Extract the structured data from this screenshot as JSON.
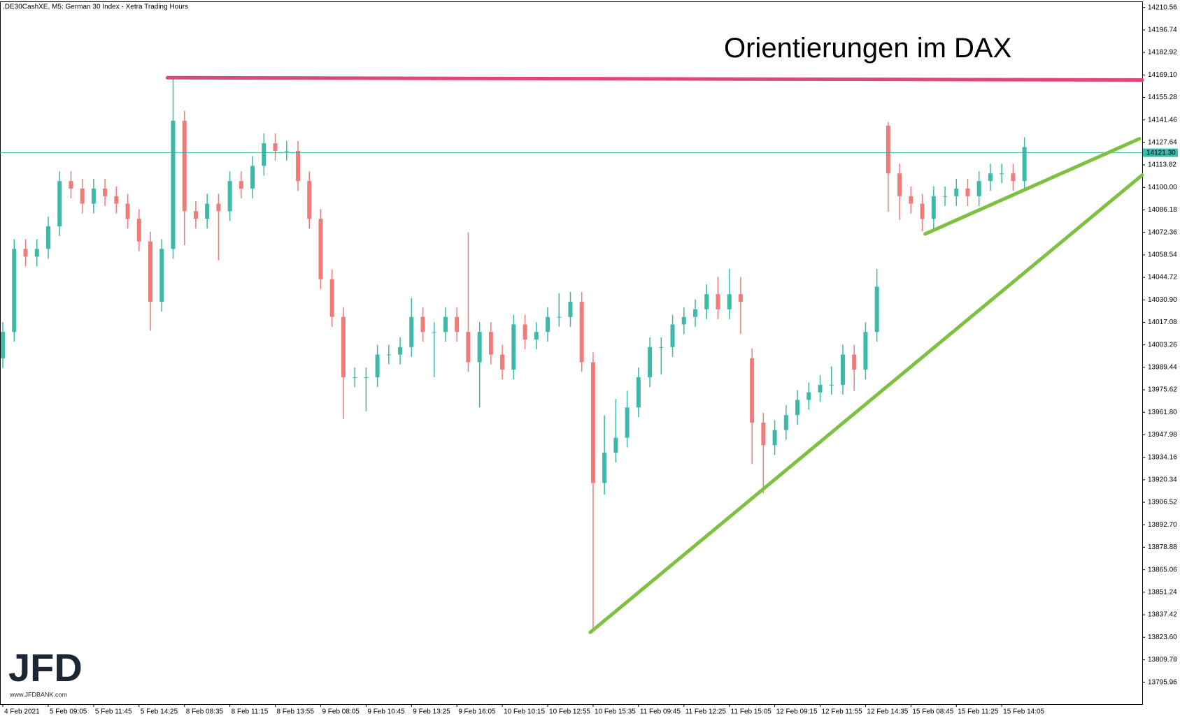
{
  "chart_data": {
    "type": "ohlc",
    "header": ".DE30CashXE, M5:  German 30 Index  - Xetra Trading Hours",
    "title": "Orientierungen im DAX",
    "logo": "JFD",
    "logo_url": "www.JFDBANK.com",
    "up_color": "#3cb9a8",
    "down_color": "#ef7b7b",
    "x": [
      0,
      8,
      16,
      24,
      32,
      40,
      48,
      56,
      64,
      72,
      80,
      88,
      96,
      104,
      112,
      120,
      128,
      136,
      144,
      152,
      160,
      168,
      176,
      184,
      192,
      200,
      208,
      216,
      224,
      232,
      240,
      248,
      256,
      264,
      272,
      280,
      288,
      296,
      304,
      312,
      320,
      328,
      336,
      344,
      352,
      360,
      368,
      376,
      384,
      392,
      400,
      408,
      416,
      424,
      432,
      440,
      448,
      456,
      464,
      472,
      480,
      488,
      496,
      504,
      512,
      520,
      528,
      536,
      544,
      552,
      560,
      568,
      576,
      584,
      592,
      600,
      608,
      616,
      624,
      632,
      640,
      648,
      656,
      664,
      672,
      680,
      688,
      696,
      704,
      712,
      720
    ],
    "open": [
      13995.0,
      14011.2,
      14062.2,
      14057.5,
      14062.2,
      14076.1,
      14103.9,
      14099.3,
      14090.0,
      14099.3,
      14094.6,
      14090.0,
      14080.7,
      14066.8,
      14029.7,
      14062.2,
      14141.0,
      14085.4,
      14080.7,
      14090.0,
      14085.4,
      14103.9,
      14099.3,
      14113.2,
      14127.1,
      14122.5,
      14122.5,
      14103.9,
      14080.7,
      14043.6,
      14020.4,
      13983.3,
      13983.3,
      13983.3,
      13997.3,
      13997.3,
      14001.9,
      14020.4,
      14011.2,
      14011.2,
      14020.4,
      14011.2,
      13992.6,
      14011.2,
      13997.3,
      13988.0,
      14015.8,
      14006.5,
      14011.2,
      14020.4,
      14020.4,
      14029.7,
      13992.6,
      13918.4,
      13937.0,
      13946.2,
      13964.8,
      13983.3,
      14001.9,
      14001.9,
      14015.8,
      14020.4,
      14025.1,
      14034.4,
      14025.1,
      14034.4,
      13995.0,
      13955.5,
      13941.6,
      13950.9,
      13960.1,
      13969.4,
      13974.1,
      13978.7,
      13978.7,
      13997.3,
      13988.0,
      14011.2,
      14138.0,
      14108.6,
      14094.6,
      14090.0,
      14080.7,
      14094.6,
      14094.6,
      14099.3,
      14094.6,
      14103.9,
      14108.6,
      14108.6,
      14103.9
    ],
    "high": [
      14017.2,
      14068.2,
      14068.2,
      14068.2,
      14082.1,
      14109.9,
      14109.9,
      14105.3,
      14105.3,
      14105.3,
      14100.6,
      14096.0,
      14086.7,
      14072.8,
      14068.2,
      14167.4,
      14147.0,
      14091.4,
      14096.0,
      14096.0,
      14109.9,
      14109.9,
      14119.2,
      14133.1,
      14133.1,
      14128.5,
      14128.5,
      14109.9,
      14086.7,
      14049.6,
      14026.4,
      13989.3,
      13989.3,
      14003.3,
      14003.3,
      14007.9,
      14032.0,
      14026.4,
      14017.2,
      14026.4,
      14026.4,
      14072.4,
      14017.2,
      14017.2,
      14003.3,
      14021.8,
      14021.8,
      14017.2,
      14026.4,
      14035.0,
      14035.7,
      14035.7,
      13998.6,
      13960.0,
      13970.0,
      13975.0,
      13989.3,
      14007.9,
      14007.9,
      14021.8,
      14026.4,
      14031.1,
      14040.4,
      14045.0,
      14050.0,
      14045.0,
      14001.0,
      13961.5,
      13956.9,
      13966.1,
      13975.4,
      13980.1,
      13984.7,
      13990.0,
      14003.3,
      14003.3,
      14017.2,
      14050.0,
      14140.1,
      14114.6,
      14100.6,
      14096.0,
      14100.6,
      14100.6,
      14105.3,
      14105.3,
      14109.9,
      14114.6,
      14114.6,
      14114.6,
      14130.8
    ],
    "low": [
      13989.0,
      14005.2,
      14051.5,
      14051.5,
      14056.2,
      14070.1,
      14093.3,
      14084.0,
      14084.0,
      14088.6,
      14084.0,
      14074.7,
      14060.8,
      14012.0,
      14023.7,
      14056.2,
      14064.5,
      14074.7,
      14074.7,
      14055.2,
      14079.4,
      14093.3,
      14093.3,
      14107.2,
      14116.5,
      14116.5,
      14097.9,
      14074.7,
      14037.6,
      14014.4,
      13957.8,
      13977.3,
      13962.4,
      13977.3,
      13991.3,
      13991.3,
      13995.9,
      14005.2,
      13983.3,
      14005.2,
      14005.2,
      13986.6,
      13964.8,
      13991.3,
      13982.0,
      13982.0,
      14000.5,
      14000.5,
      14005.2,
      14014.4,
      14014.4,
      13986.6,
      13826.6,
      13911.4,
      13931.0,
      13940.2,
      13958.8,
      13977.3,
      13985.0,
      13995.9,
      14009.8,
      14014.4,
      14019.1,
      14019.1,
      14019.1,
      14010.0,
      13930.0,
      13912.0,
      13935.6,
      13944.9,
      13954.1,
      13963.4,
      13968.1,
      13972.7,
      13972.7,
      13975.0,
      13982.0,
      14005.2,
      14085.0,
      14080.0,
      14084.0,
      14073.0,
      14074.7,
      14088.6,
      14088.6,
      14088.6,
      14088.6,
      14097.9,
      14102.6,
      14097.9,
      14097.9
    ],
    "close": [
      14011.2,
      14062.2,
      14057.5,
      14062.2,
      14076.1,
      14103.9,
      14099.3,
      14090.0,
      14099.3,
      14094.6,
      14090.0,
      14080.7,
      14066.8,
      14029.7,
      14062.2,
      14141.0,
      14085.4,
      14080.7,
      14090.0,
      14085.4,
      14103.9,
      14099.3,
      14113.2,
      14127.1,
      14122.5,
      14122.5,
      14103.9,
      14080.7,
      14043.6,
      14020.4,
      13983.3,
      13983.3,
      13983.3,
      13997.3,
      13997.3,
      14001.9,
      14020.4,
      14011.2,
      14011.2,
      14020.4,
      14011.2,
      13992.6,
      14011.2,
      13997.3,
      13988.0,
      14015.8,
      14006.5,
      14011.2,
      14020.4,
      14020.4,
      14029.7,
      13992.6,
      13918.4,
      13937.0,
      13946.2,
      13964.8,
      13983.3,
      14001.9,
      14001.9,
      14015.8,
      14020.4,
      14025.1,
      14034.4,
      14025.1,
      14034.4,
      14029.7,
      13955.5,
      13941.6,
      13950.9,
      13960.1,
      13969.4,
      13974.1,
      13978.7,
      13978.7,
      13997.3,
      13988.0,
      14011.2,
      14039.0,
      14108.6,
      14094.6,
      14090.0,
      14080.7,
      14094.6,
      14094.6,
      14099.3,
      14094.6,
      14103.9,
      14108.6,
      14108.6,
      14103.9,
      14124.8
    ],
    "xlim": [
      -2,
      803
    ],
    "ylim": [
      13782.5,
      14214.3
    ],
    "xticks": [
      {
        "value": 0,
        "label": "4 Feb 2021"
      },
      {
        "value": 32,
        "label": "5 Feb 09:05"
      },
      {
        "value": 64,
        "label": "5 Feb 11:45"
      },
      {
        "value": 96,
        "label": "5 Feb 14:25"
      },
      {
        "value": 128,
        "label": "8 Feb 08:35"
      },
      {
        "value": 160,
        "label": "8 Feb 11:15"
      },
      {
        "value": 192,
        "label": "8 Feb 13:55"
      },
      {
        "value": 224,
        "label": "9 Feb 08:05"
      },
      {
        "value": 256,
        "label": "9 Feb 10:45"
      },
      {
        "value": 288,
        "label": "9 Feb 13:25"
      },
      {
        "value": 320,
        "label": "9 Feb 16:05"
      },
      {
        "value": 352,
        "label": "10 Feb 10:15"
      },
      {
        "value": 384,
        "label": "10 Feb 12:55"
      },
      {
        "value": 416,
        "label": "10 Feb 15:35"
      },
      {
        "value": 448,
        "label": "11 Feb 09:45"
      },
      {
        "value": 480,
        "label": "11 Feb 12:25"
      },
      {
        "value": 512,
        "label": "11 Feb 15:05"
      },
      {
        "value": 544,
        "label": "12 Feb 09:15"
      },
      {
        "value": 576,
        "label": "12 Feb 11:55"
      },
      {
        "value": 608,
        "label": "12 Feb 14:35"
      },
      {
        "value": 640,
        "label": "15 Feb 08:45"
      },
      {
        "value": 672,
        "label": "15 Feb 11:25"
      },
      {
        "value": 704,
        "label": "15 Feb 14:05"
      }
    ],
    "yticks": [
      14210.56,
      14196.74,
      14182.92,
      {
        "value": 14169.1,
        "label": "14169.10"
      },
      14155.28,
      14141.46,
      14127.64,
      14113.82,
      {
        "value": 14100,
        "label": "14100.00"
      },
      14086.18,
      14072.36,
      14058.54,
      14044.72,
      {
        "value": 14030.9,
        "label": "14030.90"
      },
      14017.08,
      14003.26,
      13989.44,
      13975.62,
      {
        "value": 13961.8,
        "label": "13961.80"
      },
      13947.98,
      13934.16,
      13920.34,
      13906.52,
      {
        "value": 13892.7,
        "label": "13892.70"
      },
      13878.88,
      13865.06,
      13851.24,
      13837.42,
      {
        "value": 13823.6,
        "label": "13823.60"
      },
      13809.78,
      13795.96
    ],
    "price_line": {
      "value": 14121.3,
      "label": "14121.30",
      "color": "#3cb9a8"
    },
    "lines": [
      {
        "color": "#e0457b",
        "x": [
          116,
          803
        ],
        "y": [
          14167.4,
          14166.0
        ]
      },
      {
        "color": "#7dc142",
        "x": [
          414,
          803
        ],
        "y": [
          13826.6,
          14107.6
        ]
      },
      {
        "color": "#7dc142",
        "x": [
          650,
          801
        ],
        "y": [
          14071.4,
          14129.9
        ]
      }
    ]
  }
}
